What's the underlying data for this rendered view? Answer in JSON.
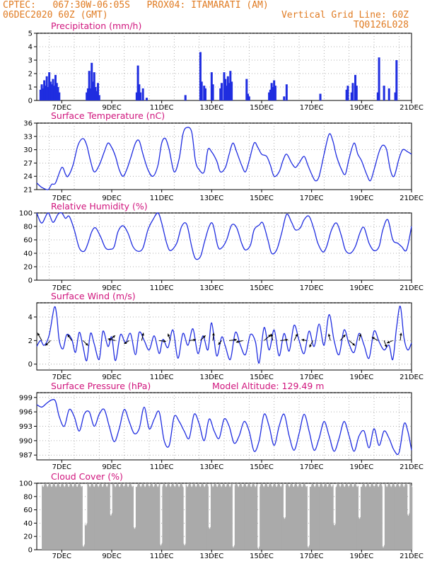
{
  "header": {
    "line1_left": "CPTEC:   067:30W-06:05S   PROX04: ITAMARATI (AM)",
    "line2_left": "06DEC2020 60Z (GMT)",
    "line2_right": "Vertical Grid Line: 60Z",
    "line3_right": "TQ0126L028"
  },
  "chart_data": [
    {
      "type": "bar",
      "title": "Precipitation (mm/h)",
      "color": "#1f2de0",
      "ylim": [
        0,
        5
      ],
      "yticks": [
        0,
        1,
        2,
        3,
        4,
        5
      ],
      "xlabels": [
        "7DEC",
        "9DEC",
        "11DEC",
        "13DEC",
        "15DEC",
        "17DEC",
        "19DEC",
        "21DEC"
      ],
      "grid": true,
      "values_x_days": [
        6.15,
        6.2,
        6.25,
        6.3,
        6.35,
        6.4,
        6.45,
        6.5,
        6.55,
        6.6,
        6.65,
        6.7,
        6.75,
        6.8,
        6.85,
        6.9,
        8.0,
        8.05,
        8.1,
        8.15,
        8.2,
        8.25,
        8.3,
        8.35,
        8.4,
        8.45,
        8.5,
        10.0,
        10.05,
        10.1,
        10.15,
        10.25,
        10.4,
        11.95,
        12.55,
        12.6,
        12.7,
        12.75,
        13.0,
        13.05,
        13.35,
        13.4,
        13.5,
        13.55,
        13.6,
        13.65,
        13.7,
        13.75,
        13.8,
        14.4,
        14.45,
        14.5,
        15.3,
        15.35,
        15.4,
        15.45,
        15.5,
        15.55,
        15.9,
        16.0,
        17.35,
        18.4,
        18.45,
        18.6,
        18.65,
        18.75,
        18.8,
        19.65,
        19.7,
        19.9,
        20.1,
        20.35,
        20.4
      ],
      "values_mm": [
        0.8,
        1.2,
        0.9,
        1.5,
        1.1,
        1.8,
        1.0,
        2.1,
        1.4,
        1.2,
        1.6,
        1.1,
        1.9,
        1.3,
        1.0,
        0.6,
        0.6,
        0.9,
        2.2,
        0.9,
        2.8,
        1.4,
        2.1,
        1.0,
        0.7,
        1.3,
        0.4,
        0.6,
        2.6,
        1.2,
        0.6,
        0.9,
        0.2,
        0.4,
        3.6,
        1.4,
        1.1,
        0.9,
        2.1,
        1.2,
        0.9,
        1.3,
        2.1,
        1.6,
        1.1,
        1.8,
        1.3,
        2.2,
        1.4,
        1.6,
        0.5,
        0.3,
        0.6,
        0.8,
        1.3,
        1.0,
        1.5,
        1.1,
        0.3,
        1.2,
        0.5,
        0.8,
        1.1,
        0.6,
        1.3,
        1.9,
        1.1,
        0.6,
        3.2,
        1.1,
        0.9,
        0.6,
        3.0
      ]
    },
    {
      "type": "line",
      "title": "Surface Temperature (nC)",
      "color": "#1f2de0",
      "ylim": [
        21,
        36
      ],
      "yticks": [
        21,
        24,
        27,
        30,
        33,
        36
      ],
      "xlabels": [
        "7DEC",
        "9DEC",
        "11DEC",
        "13DEC",
        "15DEC",
        "17DEC",
        "19DEC",
        "21DEC"
      ],
      "grid": true,
      "x_days": [
        6.0,
        6.2,
        6.45,
        6.6,
        6.75,
        7.0,
        7.15,
        7.25,
        7.45,
        7.65,
        7.85,
        8.0,
        8.15,
        8.3,
        8.5,
        8.7,
        8.85,
        9.0,
        9.15,
        9.3,
        9.45,
        9.6,
        9.75,
        9.95,
        10.1,
        10.25,
        10.45,
        10.65,
        10.85,
        11.0,
        11.15,
        11.3,
        11.5,
        11.7,
        11.85,
        12.0,
        12.2,
        12.35,
        12.5,
        12.7,
        12.85,
        13.0,
        13.2,
        13.35,
        13.55,
        13.7,
        13.85,
        14.0,
        14.2,
        14.35,
        14.5,
        14.7,
        14.85,
        15.0,
        15.2,
        15.35,
        15.5,
        15.7,
        15.85,
        16.0,
        16.2,
        16.35,
        16.5,
        16.7,
        16.85,
        17.0,
        17.15,
        17.3,
        17.5,
        17.7,
        17.85,
        18.0,
        18.2,
        18.35,
        18.5,
        18.7,
        18.85,
        19.0,
        19.2,
        19.35,
        19.5,
        19.7,
        19.85,
        20.0,
        20.15,
        20.3,
        20.5,
        20.65,
        20.85,
        21.0
      ],
      "y_values": [
        22.5,
        21.5,
        21.0,
        22.2,
        22.5,
        26.0,
        24.5,
        24.0,
        26.5,
        31.0,
        32.5,
        31.0,
        27.5,
        25.0,
        26.5,
        29.5,
        31.5,
        30.5,
        28.5,
        25.5,
        24.0,
        25.5,
        28.0,
        31.5,
        32.0,
        29.0,
        25.5,
        24.0,
        26.5,
        31.5,
        32.5,
        30.0,
        25.0,
        28.0,
        33.5,
        35.0,
        34.0,
        27.5,
        25.5,
        25.0,
        30.0,
        29.5,
        27.5,
        25.0,
        26.0,
        29.0,
        31.5,
        29.5,
        26.5,
        25.0,
        27.5,
        31.5,
        30.5,
        29.0,
        28.5,
        26.5,
        24.0,
        25.0,
        27.5,
        29.0,
        27.0,
        26.0,
        27.0,
        28.5,
        26.5,
        24.5,
        23.0,
        24.0,
        29.0,
        33.5,
        32.0,
        28.5,
        25.5,
        24.5,
        28.0,
        31.5,
        29.0,
        27.5,
        24.5,
        23.0,
        25.5,
        29.5,
        31.0,
        30.0,
        25.5,
        24.0,
        28.0,
        30.0,
        29.5,
        29.0
      ]
    },
    {
      "type": "line",
      "title": "Relative Humidity (%)",
      "color": "#1f2de0",
      "ylim": [
        0,
        100
      ],
      "yticks": [
        0,
        20,
        40,
        60,
        80,
        100
      ],
      "xlabels": [
        "7DEC",
        "9DEC",
        "11DEC",
        "13DEC",
        "15DEC",
        "17DEC",
        "19DEC",
        "21DEC"
      ],
      "grid": true,
      "x_days": [
        6.0,
        6.2,
        6.45,
        6.65,
        6.85,
        7.0,
        7.15,
        7.3,
        7.5,
        7.7,
        7.9,
        8.05,
        8.2,
        8.35,
        8.55,
        8.75,
        8.95,
        9.1,
        9.25,
        9.45,
        9.65,
        9.85,
        10.05,
        10.25,
        10.45,
        10.65,
        10.85,
        11.0,
        11.2,
        11.35,
        11.6,
        11.8,
        12.0,
        12.2,
        12.35,
        12.55,
        12.7,
        12.9,
        13.05,
        13.25,
        13.4,
        13.6,
        13.8,
        14.0,
        14.2,
        14.35,
        14.55,
        14.7,
        14.9,
        15.05,
        15.25,
        15.4,
        15.6,
        15.8,
        16.0,
        16.2,
        16.35,
        16.55,
        16.7,
        16.9,
        17.1,
        17.25,
        17.45,
        17.6,
        17.8,
        18.0,
        18.2,
        18.35,
        18.55,
        18.75,
        18.95,
        19.1,
        19.3,
        19.5,
        19.7,
        19.85,
        20.05,
        20.25,
        20.45,
        20.6,
        20.8,
        21.0
      ],
      "y_values": [
        100,
        85,
        100,
        86,
        98,
        100,
        92,
        95,
        75,
        48,
        43,
        55,
        72,
        78,
        65,
        48,
        46,
        50,
        72,
        81,
        70,
        50,
        43,
        48,
        75,
        90,
        100,
        85,
        55,
        44,
        55,
        80,
        83,
        50,
        32,
        35,
        55,
        80,
        83,
        50,
        48,
        60,
        82,
        78,
        55,
        45,
        52,
        75,
        82,
        85,
        60,
        40,
        45,
        70,
        98,
        86,
        75,
        78,
        90,
        95,
        75,
        55,
        42,
        50,
        75,
        85,
        65,
        45,
        40,
        50,
        72,
        78,
        55,
        44,
        50,
        75,
        90,
        60,
        55,
        50,
        45,
        80
      ]
    },
    {
      "type": "line",
      "title": "Surface Wind (m/s)",
      "color": "#1f2de0",
      "ylim": [
        -0.5,
        5.2
      ],
      "yticks": [
        0,
        2,
        4
      ],
      "xlabels": [
        "7DEC",
        "9DEC",
        "11DEC",
        "13DEC",
        "15DEC",
        "17DEC",
        "19DEC",
        "21DEC"
      ],
      "grid": true,
      "x_days": [
        6.0,
        6.15,
        6.3,
        6.5,
        6.7,
        6.8,
        6.9,
        7.05,
        7.2,
        7.4,
        7.55,
        7.7,
        7.85,
        8.0,
        8.15,
        8.3,
        8.5,
        8.65,
        8.85,
        9.0,
        9.15,
        9.35,
        9.55,
        9.75,
        9.95,
        10.1,
        10.3,
        10.5,
        10.7,
        10.9,
        11.05,
        11.25,
        11.45,
        11.65,
        11.85,
        12.05,
        12.25,
        12.45,
        12.65,
        12.85,
        13.0,
        13.2,
        13.4,
        13.55,
        13.75,
        13.95,
        14.15,
        14.35,
        14.55,
        14.75,
        14.9,
        15.1,
        15.3,
        15.5,
        15.7,
        15.9,
        16.1,
        16.3,
        16.5,
        16.7,
        16.9,
        17.1,
        17.3,
        17.5,
        17.7,
        17.9,
        18.1,
        18.3,
        18.5,
        18.7,
        18.9,
        19.1,
        19.3,
        19.5,
        19.7,
        19.9,
        20.1,
        20.25,
        20.4,
        20.55,
        20.7,
        20.85,
        21.0
      ],
      "y_values": [
        1.5,
        2.0,
        1.6,
        2.5,
        4.8,
        4.1,
        2.0,
        1.3,
        2.5,
        2.1,
        1.0,
        2.7,
        1.5,
        0.3,
        2.6,
        1.7,
        0.4,
        2.8,
        1.5,
        2.3,
        0.3,
        2.5,
        1.8,
        2.6,
        0.8,
        2.7,
        2.0,
        1.2,
        2.4,
        0.9,
        2.1,
        1.4,
        2.9,
        0.5,
        2.6,
        1.6,
        3.0,
        0.9,
        2.4,
        1.2,
        3.5,
        0.7,
        2.3,
        1.5,
        0.4,
        2.7,
        1.6,
        0.8,
        2.5,
        1.9,
        0.1,
        3.1,
        1.2,
        2.9,
        0.7,
        2.6,
        1.1,
        3.3,
        2.0,
        0.9,
        2.8,
        1.5,
        3.4,
        1.6,
        4.2,
        2.0,
        0.8,
        2.9,
        1.7,
        1.0,
        2.6,
        1.6,
        0.5,
        2.8,
        1.9,
        1.2,
        1.6,
        0.4,
        3.1,
        4.9,
        2.2,
        1.2,
        1.8
      ],
      "arrows": [
        {
          "day": 6.2,
          "u": -0.5,
          "v": 0.9
        },
        {
          "day": 6.55,
          "u": -0.6,
          "v": -0.6
        },
        {
          "day": 7.4,
          "u": -0.5,
          "v": 0.7
        },
        {
          "day": 7.85,
          "u": 0.6,
          "v": -0.6
        },
        {
          "day": 8.9,
          "u": 0.7,
          "v": 0.6
        },
        {
          "day": 9.15,
          "u": -0.9,
          "v": 0.2
        },
        {
          "day": 9.7,
          "u": -0.6,
          "v": -0.4
        },
        {
          "day": 10.2,
          "u": 0.2,
          "v": 0.9
        },
        {
          "day": 10.9,
          "u": 0.8,
          "v": -0.1
        },
        {
          "day": 11.35,
          "u": -0.3,
          "v": 0.8
        },
        {
          "day": 12.1,
          "u": 0.8,
          "v": 0.1
        },
        {
          "day": 12.55,
          "u": 0.6,
          "v": 0.6
        },
        {
          "day": 13.05,
          "u": 0.1,
          "v": 0.9
        },
        {
          "day": 13.4,
          "u": -0.4,
          "v": -0.5
        },
        {
          "day": 13.7,
          "u": 0.9,
          "v": 0.1
        },
        {
          "day": 14.25,
          "u": -0.8,
          "v": -0.2
        },
        {
          "day": 15.1,
          "u": 0.8,
          "v": 0.7
        },
        {
          "day": 15.45,
          "u": -0.2,
          "v": 0.8
        },
        {
          "day": 15.75,
          "u": 0.9,
          "v": 0.1
        },
        {
          "day": 16.3,
          "u": 0.4,
          "v": 0.8
        },
        {
          "day": 16.8,
          "u": -0.6,
          "v": 0.1
        },
        {
          "day": 17.05,
          "u": -0.4,
          "v": -0.8
        },
        {
          "day": 17.75,
          "u": -0.2,
          "v": 0.8
        },
        {
          "day": 18.15,
          "u": 0.6,
          "v": 0.7
        },
        {
          "day": 18.5,
          "u": 0.7,
          "v": -0.6
        },
        {
          "day": 18.9,
          "u": 0.2,
          "v": 0.8
        },
        {
          "day": 19.65,
          "u": -0.7,
          "v": 0.4
        },
        {
          "day": 19.9,
          "u": 0.3,
          "v": -0.8
        },
        {
          "day": 20.25,
          "u": -0.7,
          "v": -0.3
        },
        {
          "day": 20.55,
          "u": 0.1,
          "v": 0.9
        }
      ]
    },
    {
      "type": "line",
      "title": "Surface Pressure (hPa)",
      "annotation": "Model Altitude: 129.49 m",
      "color": "#1f2de0",
      "ylim": [
        986,
        1000
      ],
      "yticks": [
        987,
        990,
        993,
        996,
        999
      ],
      "xlabels": [
        "7DEC",
        "9DEC",
        "11DEC",
        "13DEC",
        "15DEC",
        "17DEC",
        "19DEC",
        "21DEC"
      ],
      "grid": true,
      "x_days": [
        6.0,
        6.2,
        6.4,
        6.6,
        6.75,
        6.9,
        7.1,
        7.3,
        7.5,
        7.7,
        7.9,
        8.1,
        8.3,
        8.5,
        8.7,
        8.9,
        9.1,
        9.3,
        9.5,
        9.7,
        9.9,
        10.1,
        10.3,
        10.5,
        10.7,
        10.9,
        11.1,
        11.3,
        11.5,
        11.7,
        11.9,
        12.1,
        12.3,
        12.5,
        12.7,
        12.9,
        13.1,
        13.3,
        13.5,
        13.7,
        13.9,
        14.1,
        14.3,
        14.5,
        14.7,
        14.9,
        15.1,
        15.3,
        15.5,
        15.7,
        15.9,
        16.1,
        16.3,
        16.5,
        16.7,
        16.9,
        17.1,
        17.3,
        17.5,
        17.7,
        17.9,
        18.1,
        18.3,
        18.5,
        18.7,
        18.9,
        19.1,
        19.3,
        19.5,
        19.7,
        19.9,
        20.1,
        20.3,
        20.5,
        20.7,
        20.85,
        21.0
      ],
      "y_values": [
        997.5,
        997.0,
        997.8,
        998.5,
        998.2,
        995.0,
        993.0,
        996.5,
        995.0,
        992.0,
        995.5,
        996.0,
        993.0,
        995.5,
        996.5,
        993.0,
        989.8,
        992.5,
        996.5,
        994.0,
        991.5,
        992.5,
        997.0,
        992.5,
        994.5,
        996.0,
        990.0,
        989.0,
        995.0,
        994.0,
        992.0,
        990.5,
        995.5,
        993.5,
        990.0,
        994.5,
        992.0,
        990.5,
        994.5,
        993.0,
        989.5,
        991.0,
        994.0,
        992.0,
        987.8,
        990.0,
        995.5,
        993.0,
        989.0,
        993.0,
        995.5,
        991.0,
        988.0,
        991.5,
        995.5,
        992.0,
        988.0,
        990.5,
        994.0,
        991.0,
        987.8,
        990.5,
        994.0,
        991.0,
        987.8,
        991.0,
        992.0,
        988.5,
        992.5,
        989.0,
        992.0,
        990.5,
        988.0,
        987.5,
        993.5,
        992.0,
        988.0
      ]
    },
    {
      "type": "bar",
      "title": "Cloud Cover (%)",
      "color": "#aaaaaa",
      "ylim": [
        0,
        100
      ],
      "yticks": [
        0,
        20,
        40,
        60,
        80,
        100
      ],
      "xlabels": [
        "7DEC",
        "9DEC",
        "11DEC",
        "13DEC",
        "15DEC",
        "17DEC",
        "19DEC",
        "21DEC"
      ],
      "grid": true,
      "dips": [
        {
          "day": 7.85,
          "value": 3
        },
        {
          "day": 7.95,
          "value": 35
        },
        {
          "day": 8.95,
          "value": 50
        },
        {
          "day": 9.9,
          "value": 30
        },
        {
          "day": 10.95,
          "value": 5
        },
        {
          "day": 11.9,
          "value": 5
        },
        {
          "day": 12.9,
          "value": 30
        },
        {
          "day": 13.85,
          "value": 2
        },
        {
          "day": 14.85,
          "value": 0
        },
        {
          "day": 15.9,
          "value": 45
        },
        {
          "day": 16.85,
          "value": 2
        },
        {
          "day": 17.9,
          "value": 35
        },
        {
          "day": 18.9,
          "value": 45
        },
        {
          "day": 19.85,
          "value": 2
        },
        {
          "day": 20.85,
          "value": 50
        }
      ]
    }
  ]
}
